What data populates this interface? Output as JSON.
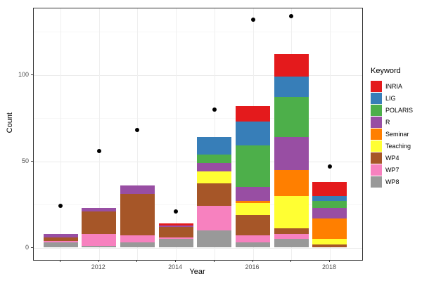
{
  "chart_data": {
    "type": "bar",
    "stacked": true,
    "title": "",
    "xlabel": "Year",
    "ylabel": "Count",
    "legend_title": "Keyword",
    "legend_position": "right",
    "grid": true,
    "categories": [
      "2011",
      "2012",
      "2013",
      "2014",
      "2015",
      "2016",
      "2017",
      "2018"
    ],
    "x_tick_labels": [
      "2012",
      "2014",
      "2016",
      "2018"
    ],
    "y_ticks": [
      0,
      50,
      100
    ],
    "y_minor_ticks": [
      25,
      75,
      125
    ],
    "ylim": [
      0,
      138
    ],
    "series": [
      {
        "name": "INRIA",
        "color": "#E41A1C",
        "values": [
          0,
          0,
          0,
          1,
          0,
          9,
          13,
          8
        ]
      },
      {
        "name": "LIG",
        "color": "#377EB8",
        "values": [
          0,
          0,
          0,
          0,
          10,
          14,
          12,
          3
        ]
      },
      {
        "name": "POLARIS",
        "color": "#4DAF4A",
        "values": [
          0,
          0,
          0,
          0,
          5,
          24,
          23,
          4
        ]
      },
      {
        "name": "R",
        "color": "#984EA3",
        "values": [
          2,
          2,
          5,
          1,
          5,
          8,
          19,
          6
        ]
      },
      {
        "name": "Seminar",
        "color": "#FF7F00",
        "values": [
          0,
          0,
          0,
          0,
          0,
          1,
          15,
          12
        ]
      },
      {
        "name": "Teaching",
        "color": "#FFFF33",
        "values": [
          0,
          0,
          0,
          0,
          7,
          7,
          19,
          3
        ]
      },
      {
        "name": "WP4",
        "color": "#A65628",
        "values": [
          2,
          13,
          24,
          6,
          13,
          12,
          3,
          2
        ]
      },
      {
        "name": "WP7",
        "color": "#F781BF",
        "values": [
          1,
          7,
          4,
          1,
          14,
          4,
          3,
          0
        ]
      },
      {
        "name": "WP8",
        "color": "#999999",
        "values": [
          3,
          1,
          3,
          5,
          10,
          3,
          5,
          0
        ]
      }
    ],
    "points": {
      "label": "yearly-total-dots",
      "color": "#000000",
      "values": [
        24,
        56,
        68,
        21,
        80,
        132,
        134,
        47
      ]
    }
  }
}
